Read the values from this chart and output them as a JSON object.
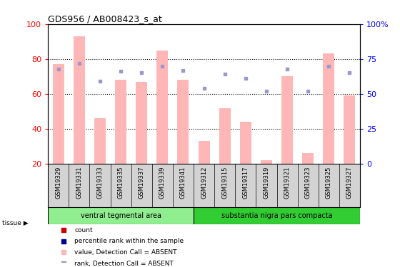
{
  "title": "GDS956 / AB008423_s_at",
  "samples": [
    "GSM19329",
    "GSM19331",
    "GSM19333",
    "GSM19335",
    "GSM19337",
    "GSM19339",
    "GSM19341",
    "GSM19312",
    "GSM19315",
    "GSM19317",
    "GSM19319",
    "GSM19321",
    "GSM19323",
    "GSM19325",
    "GSM19327"
  ],
  "bar_values_absent": [
    77,
    93,
    46,
    68,
    67,
    85,
    68,
    33,
    52,
    44,
    22,
    70,
    26,
    83,
    59
  ],
  "rank_dots_absent": [
    68,
    72,
    59,
    66,
    65,
    70,
    67,
    54,
    64,
    61,
    52,
    68,
    52,
    70,
    65
  ],
  "tissues": [
    {
      "label": "ventral tegmental area",
      "start": 0,
      "end": 7,
      "color": "#90EE90"
    },
    {
      "label": "substantia nigra pars compacta",
      "start": 7,
      "end": 15,
      "color": "#32CD32"
    }
  ],
  "ylim_left": [
    20,
    100
  ],
  "ylim_right": [
    0,
    100
  ],
  "yticks_left": [
    20,
    40,
    60,
    80,
    100
  ],
  "yticks_right": [
    0,
    25,
    50,
    75,
    100
  ],
  "ytick_labels_left": [
    "20",
    "40",
    "60",
    "80",
    "100"
  ],
  "ytick_labels_right": [
    "0",
    "25",
    "50",
    "75",
    "100%"
  ],
  "bar_color_absent": "#FFB6B6",
  "dot_color_absent": "#9999CC",
  "bg_color": "#FFFFFF",
  "sample_label_bg": "#D3D3D3",
  "legend": [
    {
      "label": "count",
      "color": "#CC0000"
    },
    {
      "label": "percentile rank within the sample",
      "color": "#000099"
    },
    {
      "label": "value, Detection Call = ABSENT",
      "color": "#FFB6B6"
    },
    {
      "label": "rank, Detection Call = ABSENT",
      "color": "#9999CC"
    }
  ],
  "grid_lines": [
    40,
    60,
    80
  ]
}
